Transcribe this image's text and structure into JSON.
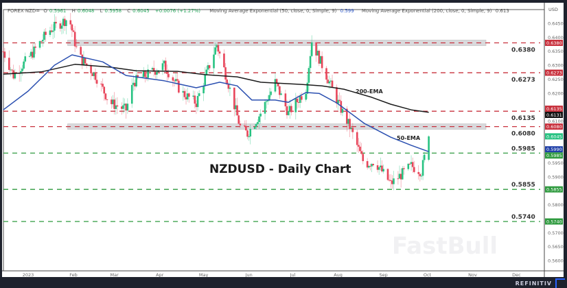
{
  "header": {
    "symbol": "FOREX NZD=",
    "open_label": "O",
    "open": "0.5961",
    "high_label": "H",
    "high": "0.6048",
    "low_label": "L",
    "low": "0.5958",
    "close_label": "C",
    "close": "0.6045",
    "change": "+0.0076 (+1.27%)",
    "ema50_name": "Moving Average Exponential (50, close, 0, Simple, 9)",
    "ema50_value": "0.599",
    "ema200_name": "Moving Average Exponential (200, close, 0, Simple, 9)",
    "ema200_value": "0.613"
  },
  "brand": "REFINITIV",
  "watermark": "FastBull",
  "colors": {
    "up": "#26c281",
    "down": "#e8455a",
    "ema50": "#2a4fb0",
    "ema200": "#1a1a1a",
    "resistance": "#c8303c",
    "support": "#2e9a3e",
    "zone": "#d9d9dc"
  },
  "chart_data": {
    "type": "candlestick",
    "title": "NZDUSD - Daily Chart",
    "currency": "USD",
    "ylim": [
      0.5575,
      0.648
    ],
    "y_ticks": [
      "0.6450",
      "0.6400",
      "0.6350",
      "0.6300",
      "0.6250",
      "0.6200",
      "0.6100",
      "0.5950",
      "0.5900",
      "0.5800",
      "0.5700",
      "0.5650",
      "0.5600"
    ],
    "x_ticks": [
      {
        "label": "2023",
        "date": "2023-01-01"
      },
      {
        "label": "Feb",
        "date": "2023-02-01"
      },
      {
        "label": "Mar",
        "date": "2023-03-01"
      },
      {
        "label": "Apr",
        "date": "2023-04-01"
      },
      {
        "label": "May",
        "date": "2023-05-01"
      },
      {
        "label": "Jun",
        "date": "2023-06-01"
      },
      {
        "label": "Jul",
        "date": "2023-07-01"
      },
      {
        "label": "Aug",
        "date": "2023-08-01"
      },
      {
        "label": "Sep",
        "date": "2023-09-01"
      },
      {
        "label": "Oct",
        "date": "2023-10-01"
      },
      {
        "label": "Nov",
        "date": "2023-11-01"
      },
      {
        "label": "Dec",
        "date": "2023-12-01"
      }
    ],
    "price_path": [
      [
        "2022-12-15",
        0.6349
      ],
      [
        "2022-12-22",
        0.6263
      ],
      [
        "2023-01-03",
        0.6337
      ],
      [
        "2023-01-15",
        0.6423
      ],
      [
        "2023-01-29",
        0.647
      ],
      [
        "2023-02-04",
        0.6337
      ],
      [
        "2023-02-16",
        0.6263
      ],
      [
        "2023-02-26",
        0.6165
      ],
      [
        "2023-03-09",
        0.614
      ],
      [
        "2023-03-14",
        0.6239
      ],
      [
        "2023-04-04",
        0.63
      ],
      [
        "2023-04-16",
        0.6202
      ],
      [
        "2023-04-26",
        0.6165
      ],
      [
        "2023-05-10",
        0.6374
      ],
      [
        "2023-05-17",
        0.6251
      ],
      [
        "2023-05-26",
        0.6079
      ],
      [
        "2023-05-31",
        0.6054
      ],
      [
        "2023-06-09",
        0.6128
      ],
      [
        "2023-06-19",
        0.6239
      ],
      [
        "2023-06-28",
        0.6128
      ],
      [
        "2023-07-10",
        0.6214
      ],
      [
        "2023-07-14",
        0.6386
      ],
      [
        "2023-07-26",
        0.6239
      ],
      [
        "2023-08-02",
        0.6153
      ],
      [
        "2023-08-09",
        0.6079
      ],
      [
        "2023-08-19",
        0.5944
      ],
      [
        "2023-08-26",
        0.5956
      ],
      [
        "2023-09-06",
        0.5875
      ],
      [
        "2023-09-20",
        0.5939
      ],
      [
        "2023-09-27",
        0.5919
      ],
      [
        "2023-09-29",
        0.5969
      ],
      [
        "2023-10-02",
        0.6045
      ]
    ],
    "ema50": [
      [
        "2022-12-15",
        0.614
      ],
      [
        "2023-01-01",
        0.6207
      ],
      [
        "2023-01-19",
        0.63
      ],
      [
        "2023-01-31",
        0.6337
      ],
      [
        "2023-02-21",
        0.6312
      ],
      [
        "2023-03-09",
        0.6263
      ],
      [
        "2023-04-04",
        0.6244
      ],
      [
        "2023-04-26",
        0.6219
      ],
      [
        "2023-05-12",
        0.6239
      ],
      [
        "2023-05-24",
        0.6226
      ],
      [
        "2023-06-03",
        0.6175
      ],
      [
        "2023-06-19",
        0.6175
      ],
      [
        "2023-06-28",
        0.6167
      ],
      [
        "2023-07-10",
        0.6202
      ],
      [
        "2023-07-19",
        0.6199
      ],
      [
        "2023-07-31",
        0.6165
      ],
      [
        "2023-08-19",
        0.6091
      ],
      [
        "2023-09-06",
        0.6042
      ],
      [
        "2023-09-20",
        0.6013
      ],
      [
        "2023-10-02",
        0.599
      ]
    ],
    "ema200": [
      [
        "2022-12-15",
        0.6268
      ],
      [
        "2023-01-10",
        0.6276
      ],
      [
        "2023-02-02",
        0.6303
      ],
      [
        "2023-02-26",
        0.6293
      ],
      [
        "2023-03-16",
        0.628
      ],
      [
        "2023-04-13",
        0.6278
      ],
      [
        "2023-05-02",
        0.6266
      ],
      [
        "2023-05-24",
        0.6258
      ],
      [
        "2023-06-09",
        0.6239
      ],
      [
        "2023-07-07",
        0.6231
      ],
      [
        "2023-07-21",
        0.6226
      ],
      [
        "2023-08-05",
        0.6214
      ],
      [
        "2023-08-24",
        0.6185
      ],
      [
        "2023-09-06",
        0.616
      ],
      [
        "2023-09-20",
        0.614
      ],
      [
        "2023-10-02",
        0.6131
      ]
    ],
    "ema50_label": "50-EMA",
    "ema200_label": "200-EMA",
    "levels": [
      {
        "price": 0.638,
        "label": "0.6380",
        "type": "resistance",
        "zone": true
      },
      {
        "price": 0.6273,
        "label": "0.6273",
        "type": "resistance",
        "zone": false
      },
      {
        "price": 0.6135,
        "label": "0.6135",
        "type": "resistance",
        "zone": false
      },
      {
        "price": 0.608,
        "label": "0.6080",
        "type": "resistance",
        "zone": true
      },
      {
        "price": 0.5985,
        "label": "0.5985",
        "type": "support",
        "zone": false
      },
      {
        "price": 0.5855,
        "label": "0.5855",
        "type": "support",
        "zone": false
      },
      {
        "price": 0.574,
        "label": "0.5740",
        "type": "support",
        "zone": false
      }
    ],
    "zone_start": "2023-01-28",
    "axis_tags": [
      {
        "label": "0.6380",
        "color": "#c8303c"
      },
      {
        "label": "0.6273",
        "color": "#c8303c"
      },
      {
        "label": "0.6135",
        "color": "#c8303c"
      },
      {
        "label": "0.6131",
        "color": "#111111"
      },
      {
        "label": "0.6080",
        "color": "#c8303c"
      },
      {
        "label": "0.6045",
        "color": "#26c281"
      },
      {
        "label": "0.5990",
        "color": "#1f3fa8"
      },
      {
        "label": "0.5985",
        "color": "#2e9a3e"
      },
      {
        "label": "0.5855",
        "color": "#2e9a3e"
      },
      {
        "label": "0.5740",
        "color": "#2e9a3e"
      }
    ]
  }
}
